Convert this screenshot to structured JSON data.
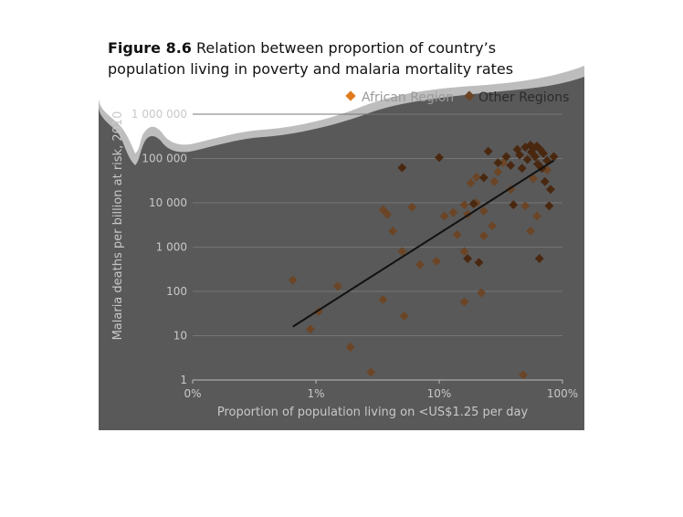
{
  "caption": {
    "figure_number": "Figure 8.6",
    "text": "Relation between proportion of country’s population living in poverty and malaria mortality rates"
  },
  "colors": {
    "african_region": "#e07b1d",
    "other_regions": "#6b4526",
    "other_regions_dark": "#4a2810",
    "trend_line": "#111111",
    "axis_text": "#c8c8c8",
    "background": "#595959"
  },
  "chart_data": {
    "type": "scatter",
    "title": "",
    "xlabel": "Proportion of population living on <US$1.25 per day",
    "ylabel": "Malaria deaths per billion at risk, 2010",
    "x_scale": "log",
    "y_scale": "log",
    "x_ticks": [
      {
        "value": 0.1,
        "label": "0%"
      },
      {
        "value": 1,
        "label": "1%"
      },
      {
        "value": 10,
        "label": "10%"
      },
      {
        "value": 100,
        "label": "100%"
      }
    ],
    "y_ticks": [
      {
        "value": 1,
        "label": "1"
      },
      {
        "value": 10,
        "label": "10"
      },
      {
        "value": 100,
        "label": "100"
      },
      {
        "value": 1000,
        "label": "1 000"
      },
      {
        "value": 10000,
        "label": "10 000"
      },
      {
        "value": 100000,
        "label": "100 000"
      },
      {
        "value": 1000000,
        "label": "1 000 000"
      }
    ],
    "xlim": [
      0.1,
      100
    ],
    "ylim": [
      1,
      1000000
    ],
    "grid": true,
    "legend_position": "top-right",
    "legend": [
      "African Region",
      "Other Regions"
    ],
    "series": [
      {
        "name": "Other Regions",
        "points": [
          [
            0.65,
            180
          ],
          [
            0.9,
            14
          ],
          [
            1.05,
            35
          ],
          [
            1.5,
            130
          ],
          [
            1.9,
            5.5
          ],
          [
            2.8,
            1.5
          ],
          [
            3.5,
            7000
          ],
          [
            3.8,
            5500
          ],
          [
            4.2,
            2300
          ],
          [
            3.5,
            65
          ],
          [
            5.0,
            800
          ],
          [
            5.2,
            28
          ],
          [
            6.0,
            8000
          ],
          [
            7.0,
            400
          ],
          [
            9.5,
            480
          ],
          [
            11,
            5000
          ],
          [
            13,
            6000
          ],
          [
            14,
            1900
          ],
          [
            16,
            9000
          ],
          [
            16,
            800
          ],
          [
            16,
            58
          ],
          [
            17,
            5500
          ],
          [
            18,
            28000
          ],
          [
            20,
            10000
          ],
          [
            20,
            38000
          ],
          [
            22,
            93
          ],
          [
            23,
            1800
          ],
          [
            23,
            6500
          ],
          [
            27,
            3000
          ],
          [
            28,
            30000
          ],
          [
            30,
            50000
          ],
          [
            33,
            80000
          ],
          [
            38,
            20000
          ],
          [
            48,
            1.3
          ],
          [
            50,
            8500
          ],
          [
            55,
            2300
          ],
          [
            58,
            35000
          ],
          [
            62,
            5000
          ],
          [
            75,
            55000
          ]
        ]
      },
      {
        "name": "Other Regions (dark)",
        "points": [
          [
            5.0,
            62000
          ],
          [
            10,
            105000
          ],
          [
            17,
            550
          ],
          [
            19,
            9500
          ],
          [
            21,
            450
          ],
          [
            23,
            37000
          ],
          [
            25,
            145000
          ],
          [
            30,
            80000
          ],
          [
            35,
            110000
          ],
          [
            38,
            70000
          ],
          [
            40,
            9000
          ],
          [
            43,
            160000
          ],
          [
            45,
            120000
          ],
          [
            47,
            60000
          ],
          [
            50,
            180000
          ],
          [
            52,
            95000
          ],
          [
            55,
            200000
          ],
          [
            56,
            140000
          ],
          [
            58,
            170000
          ],
          [
            60,
            110000
          ],
          [
            62,
            190000
          ],
          [
            63,
            75000
          ],
          [
            65,
            550
          ],
          [
            66,
            160000
          ],
          [
            68,
            60000
          ],
          [
            70,
            130000
          ],
          [
            72,
            30000
          ],
          [
            75,
            90000
          ],
          [
            78,
            8500
          ],
          [
            80,
            20000
          ],
          [
            85,
            110000
          ]
        ]
      }
    ],
    "trend_line": {
      "from": [
        0.65,
        16
      ],
      "to": [
        85,
        90000
      ]
    }
  }
}
